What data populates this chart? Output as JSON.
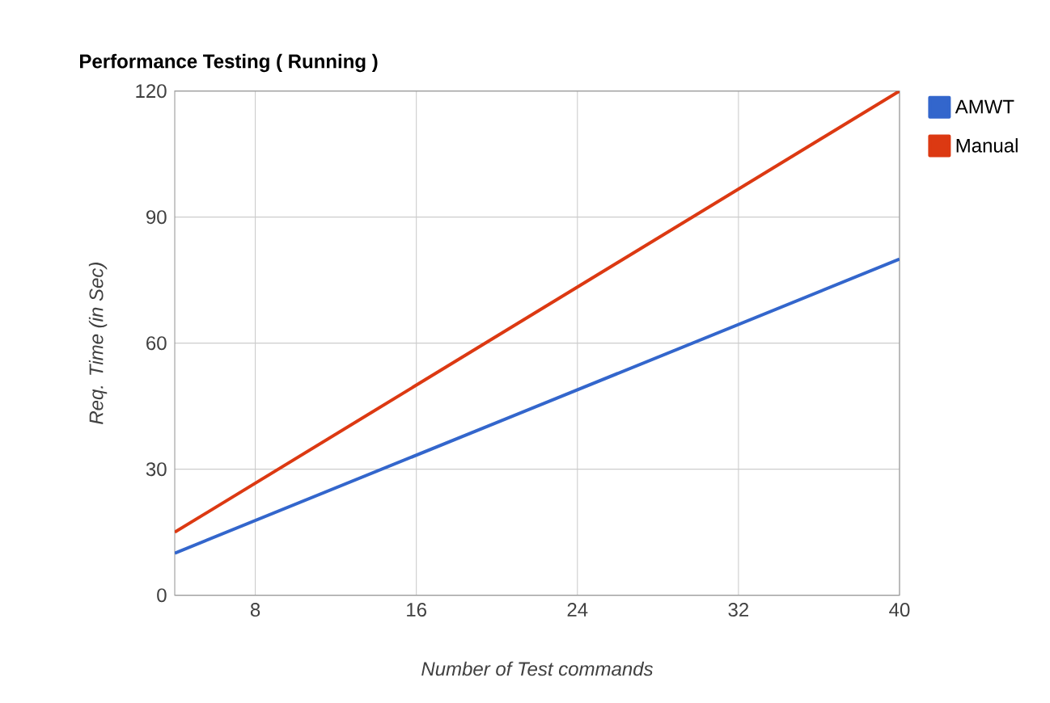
{
  "chart_data": {
    "type": "line",
    "title": "Performance Testing ( Running )",
    "xlabel": "Number of Test commands",
    "ylabel": "Req. Time (in Sec)",
    "x": [
      4,
      40
    ],
    "series": [
      {
        "name": "AMWT",
        "color": "#3366cc",
        "values": [
          10,
          80
        ]
      },
      {
        "name": "Manual",
        "color": "#dc3912",
        "values": [
          15,
          120
        ]
      }
    ],
    "xlim": [
      4,
      40
    ],
    "xticks": [
      8,
      16,
      24,
      32,
      40
    ],
    "ylim": [
      0,
      120
    ],
    "yticks": [
      0,
      30,
      60,
      90,
      120
    ],
    "grid": true,
    "legend": "top right",
    "marker": "none",
    "line_style": "solid"
  }
}
